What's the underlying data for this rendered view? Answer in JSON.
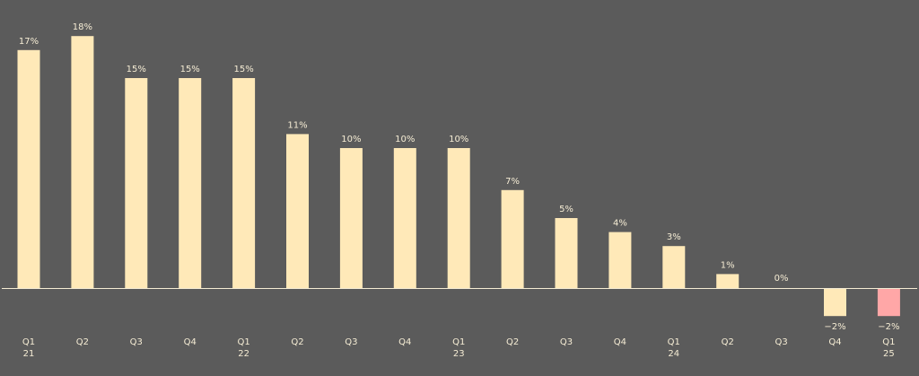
{
  "chart_data": {
    "type": "bar",
    "title": "",
    "xlabel": "",
    "ylabel": "",
    "categories": [
      {
        "quarter": "Q1",
        "year": "21"
      },
      {
        "quarter": "Q2",
        "year": ""
      },
      {
        "quarter": "Q3",
        "year": ""
      },
      {
        "quarter": "Q4",
        "year": ""
      },
      {
        "quarter": "Q1",
        "year": "22"
      },
      {
        "quarter": "Q2",
        "year": ""
      },
      {
        "quarter": "Q3",
        "year": ""
      },
      {
        "quarter": "Q4",
        "year": ""
      },
      {
        "quarter": "Q1",
        "year": "23"
      },
      {
        "quarter": "Q2",
        "year": ""
      },
      {
        "quarter": "Q3",
        "year": ""
      },
      {
        "quarter": "Q4",
        "year": ""
      },
      {
        "quarter": "Q1",
        "year": "24"
      },
      {
        "quarter": "Q2",
        "year": ""
      },
      {
        "quarter": "Q3",
        "year": ""
      },
      {
        "quarter": "Q4",
        "year": ""
      },
      {
        "quarter": "Q1",
        "year": "25"
      }
    ],
    "values": [
      17,
      18,
      15,
      15,
      15,
      11,
      10,
      10,
      10,
      7,
      5,
      4,
      3,
      1,
      0,
      -2,
      -2
    ],
    "data_labels": [
      "17%",
      "18%",
      "15%",
      "15%",
      "15%",
      "11%",
      "10%",
      "10%",
      "10%",
      "7%",
      "5%",
      "4%",
      "3%",
      "1%",
      "0%",
      "−2%",
      "−2%"
    ],
    "ylim": [
      -2.2,
      18.6
    ],
    "grid": false,
    "legend": "none",
    "colors": {
      "background": "#5b5b5b",
      "bar": "#ffe9b8",
      "highlight_bar": "#ffa7a7",
      "axis": "#f5ecd4",
      "text": "#f5ecd4"
    },
    "highlight_index": 16
  }
}
